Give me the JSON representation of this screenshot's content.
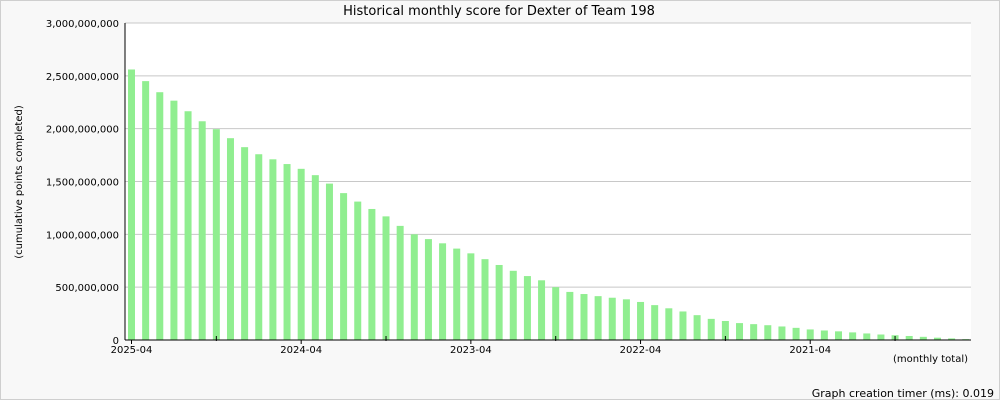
{
  "chart_data": {
    "type": "bar",
    "title": "Historical monthly score for Dexter of Team 198",
    "xlabel": "(monthly total)",
    "ylabel": "(cumulative points completed)",
    "ylim": [
      0,
      3000000000
    ],
    "yticks": [
      "0",
      "500,000,000",
      "1,000,000,000",
      "1,500,000,000",
      "2,000,000,000",
      "2,500,000,000",
      "3,000,000,000"
    ],
    "ytick_values": [
      0,
      500000000,
      1000000000,
      1500000000,
      2000000000,
      2500000000,
      3000000000
    ],
    "xticks": [
      "2025-04",
      "2024-04",
      "2023-04",
      "2022-04",
      "2021-04"
    ],
    "xtick_bar_index": [
      0,
      12,
      24,
      36,
      48
    ],
    "minor_tick_bar_index": [
      6,
      18,
      30,
      42,
      54
    ],
    "grid": true,
    "bar_color": "#90ee90",
    "series": [
      {
        "values": [
          2560000000,
          2450000000,
          2345000000,
          2265000000,
          2165000000,
          2070000000,
          1995000000,
          1910000000,
          1825000000,
          1758000000,
          1710000000,
          1665000000,
          1620000000,
          1560000000,
          1480000000,
          1390000000,
          1310000000,
          1240000000,
          1170000000,
          1080000000,
          1000000000,
          955000000,
          915000000,
          865000000,
          820000000,
          765000000,
          710000000,
          655000000,
          605000000,
          565000000,
          500000000,
          455000000,
          435000000,
          415000000,
          400000000,
          385000000,
          360000000,
          330000000,
          300000000,
          270000000,
          235000000,
          200000000,
          180000000,
          160000000,
          150000000,
          140000000,
          128000000,
          115000000,
          100000000,
          90000000,
          82000000,
          72000000,
          62000000,
          52000000,
          45000000,
          38000000,
          30000000,
          22000000,
          15000000,
          8000000
        ]
      }
    ]
  },
  "footer": {
    "timer_text": "Graph creation timer (ms): 0.019"
  }
}
